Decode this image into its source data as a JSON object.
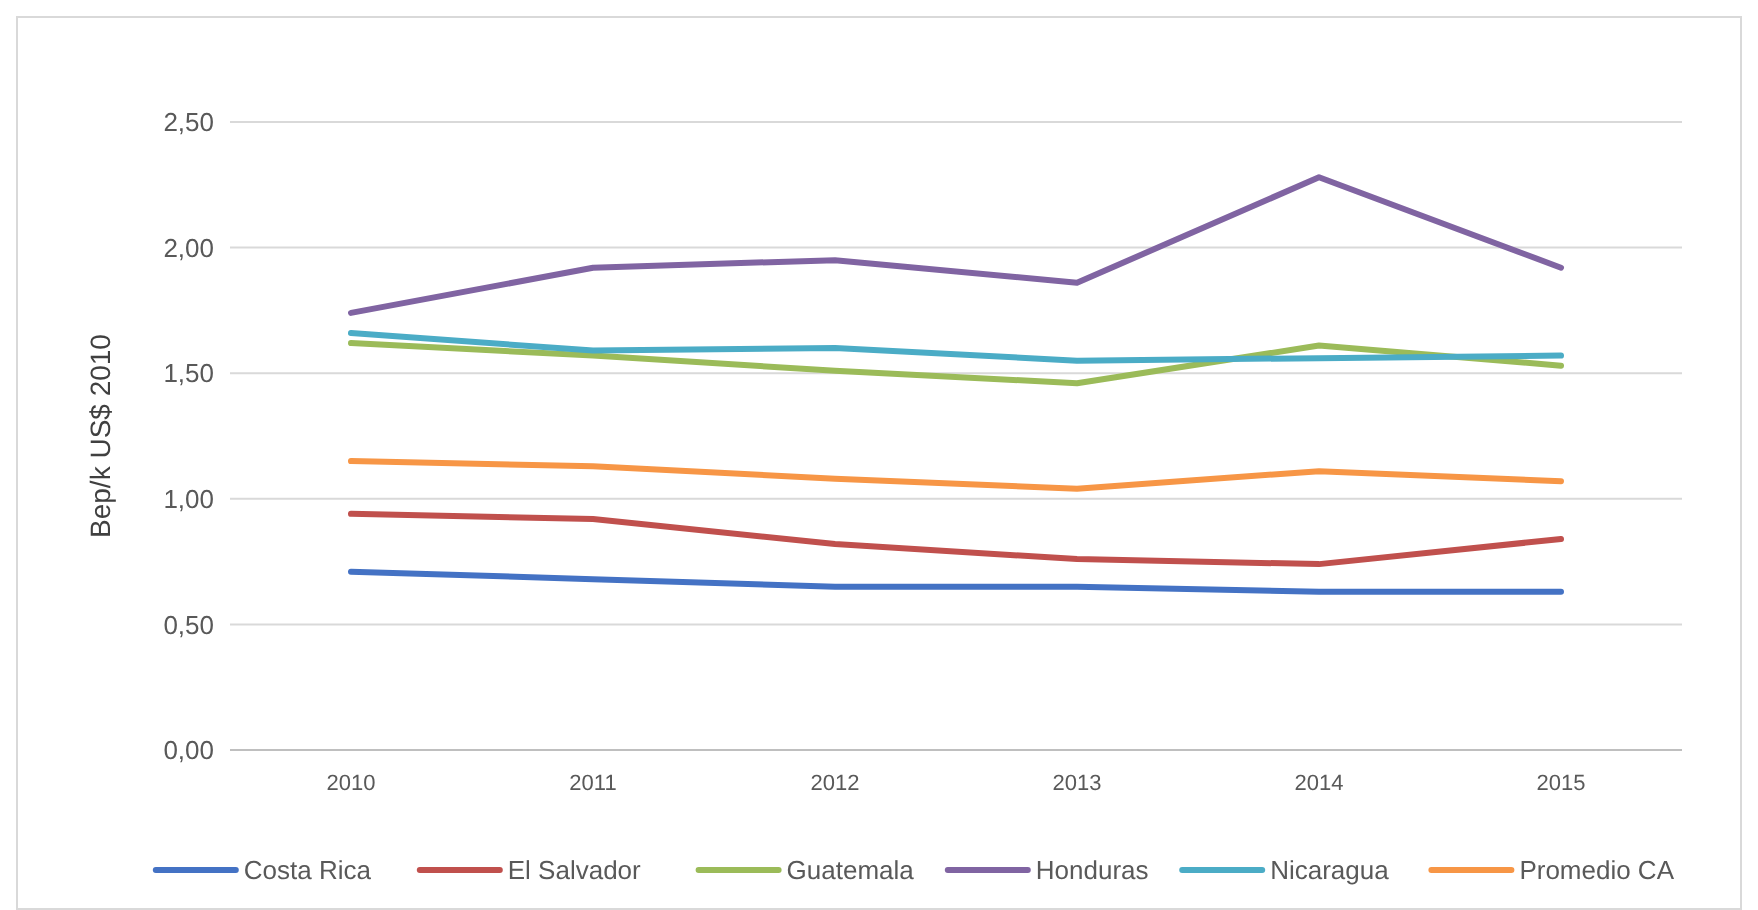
{
  "chart_data": {
    "type": "line",
    "ylabel": "Bep/k US$ 2010",
    "categories": [
      "2010",
      "2011",
      "2012",
      "2013",
      "2014",
      "2015"
    ],
    "series": [
      {
        "name": "Costa Rica",
        "color": "#4472c4",
        "values": [
          0.71,
          0.68,
          0.65,
          0.65,
          0.63,
          0.63
        ]
      },
      {
        "name": "El Salvador",
        "color": "#c0504d",
        "values": [
          0.94,
          0.92,
          0.82,
          0.76,
          0.74,
          0.84
        ]
      },
      {
        "name": "Guatemala",
        "color": "#9bbb59",
        "values": [
          1.62,
          1.57,
          1.51,
          1.46,
          1.61,
          1.53
        ]
      },
      {
        "name": "Honduras",
        "color": "#8064a2",
        "values": [
          1.74,
          1.92,
          1.95,
          1.86,
          2.28,
          1.92
        ]
      },
      {
        "name": "Nicaragua",
        "color": "#4bacc6",
        "values": [
          1.66,
          1.59,
          1.6,
          1.55,
          1.56,
          1.57
        ]
      },
      {
        "name": "Promedio CA",
        "color": "#f79646",
        "values": [
          1.15,
          1.13,
          1.08,
          1.04,
          1.11,
          1.07
        ]
      }
    ],
    "ylim": [
      0,
      2.5
    ],
    "yticks": [
      {
        "value": 0,
        "label": "0,00"
      },
      {
        "value": 0.5,
        "label": "0,50"
      },
      {
        "value": 1,
        "label": "1,00"
      },
      {
        "value": 1.5,
        "label": "1,50"
      },
      {
        "value": 2,
        "label": "2,00"
      },
      {
        "value": 2.5,
        "label": "2,50"
      }
    ],
    "grid": "y",
    "legend": "bottom",
    "marker": "none",
    "line_style": "solid"
  }
}
